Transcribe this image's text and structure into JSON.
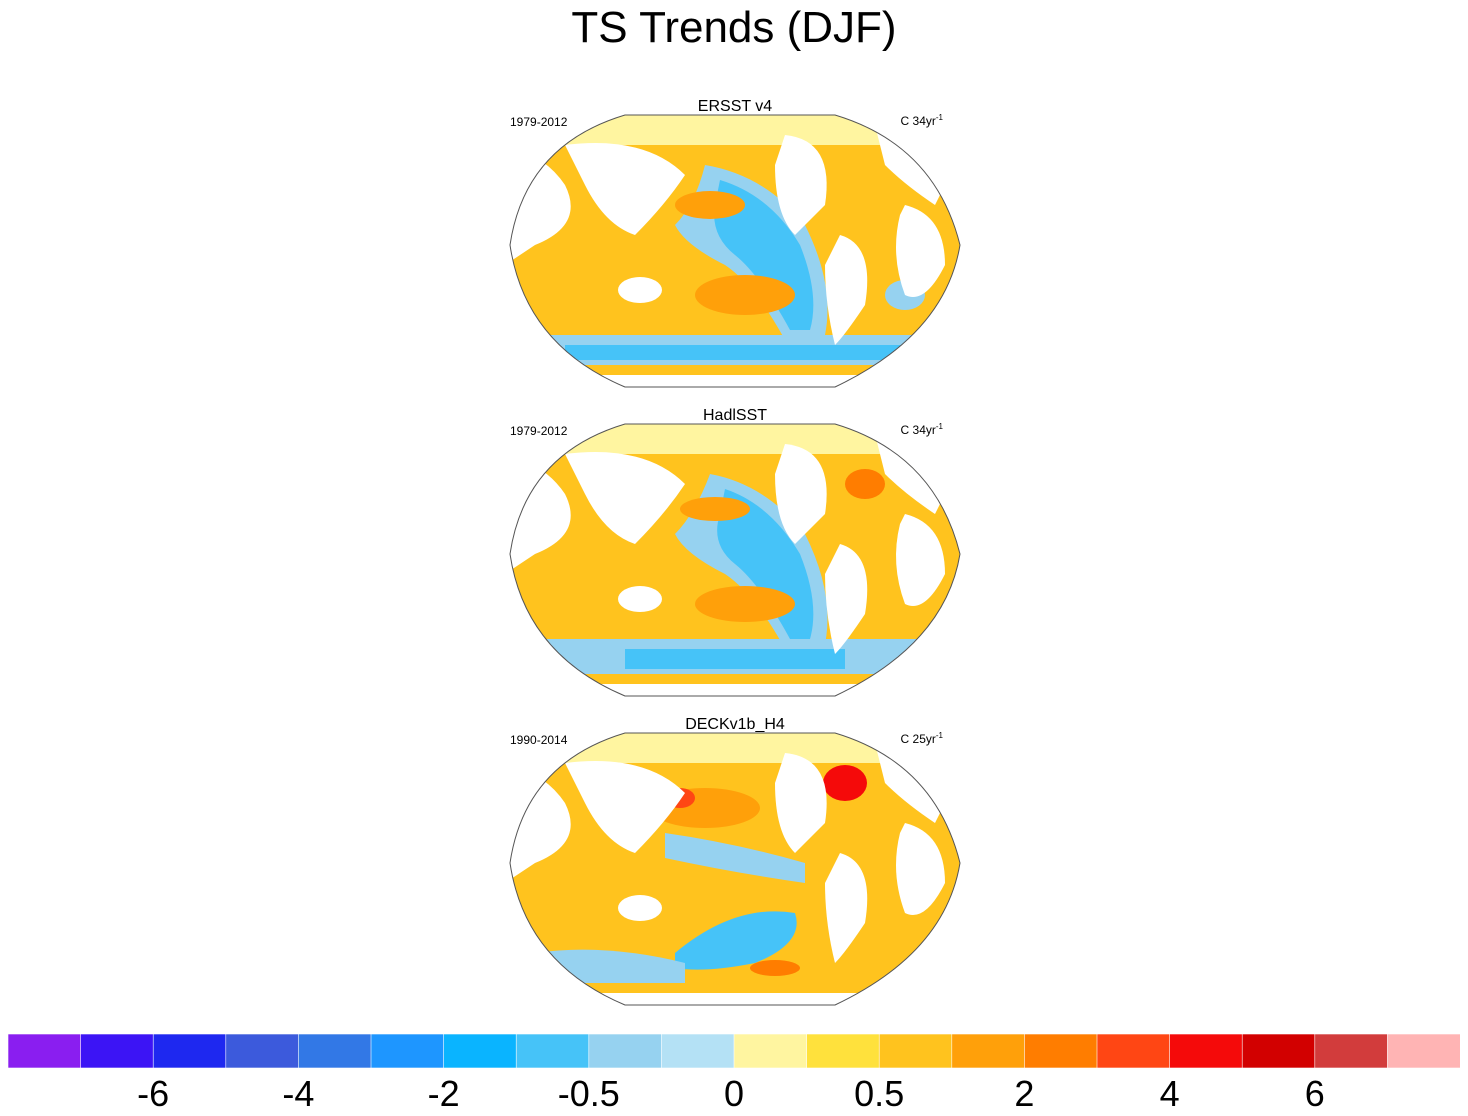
{
  "title": "TS Trends (DJF)",
  "panels": [
    {
      "title": "ERSST v4",
      "period": "1979-2012",
      "units_prefix": "C 34yr",
      "units_exp": "-1"
    },
    {
      "title": "HadlSST",
      "period": "1979-2012",
      "units_prefix": "C 34yr",
      "units_exp": "-1"
    },
    {
      "title": "DECKv1b_H4",
      "period": "1990-2014",
      "units_prefix": "C 25yr",
      "units_exp": "-1"
    }
  ],
  "chart_data": {
    "type": "heatmap",
    "title": "TS Trends (DJF)",
    "projection": "Winkel tripel world map",
    "maps": [
      {
        "name": "ERSST v4",
        "period": "1979-2012",
        "units": "C 34yr-1"
      },
      {
        "name": "HadlSST",
        "period": "1979-2012",
        "units": "C 34yr-1"
      },
      {
        "name": "DECKv1b_H4",
        "period": "1990-2014",
        "units": "C 25yr-1"
      }
    ],
    "colorbar": {
      "colors": [
        "#8a1ef0",
        "#3c14f5",
        "#1e28f0",
        "#3c5adc",
        "#3278e6",
        "#1e96ff",
        "#0ab4ff",
        "#46c3f8",
        "#96d2f0",
        "#b4e1f5",
        "#fff5a0",
        "#ffe13c",
        "#ffc31e",
        "#ffa00a",
        "#ff7d00",
        "#ff4614",
        "#f50a0a",
        "#d20000",
        "#d23c3c",
        "#ffb4b4"
      ],
      "tick_labels": [
        "-6",
        "-4",
        "-2",
        "-0.5",
        "0",
        "0.5",
        "2",
        "4",
        "6"
      ],
      "tick_boundaries": [
        2,
        4,
        6,
        8,
        10,
        12,
        14,
        16,
        18
      ]
    }
  }
}
